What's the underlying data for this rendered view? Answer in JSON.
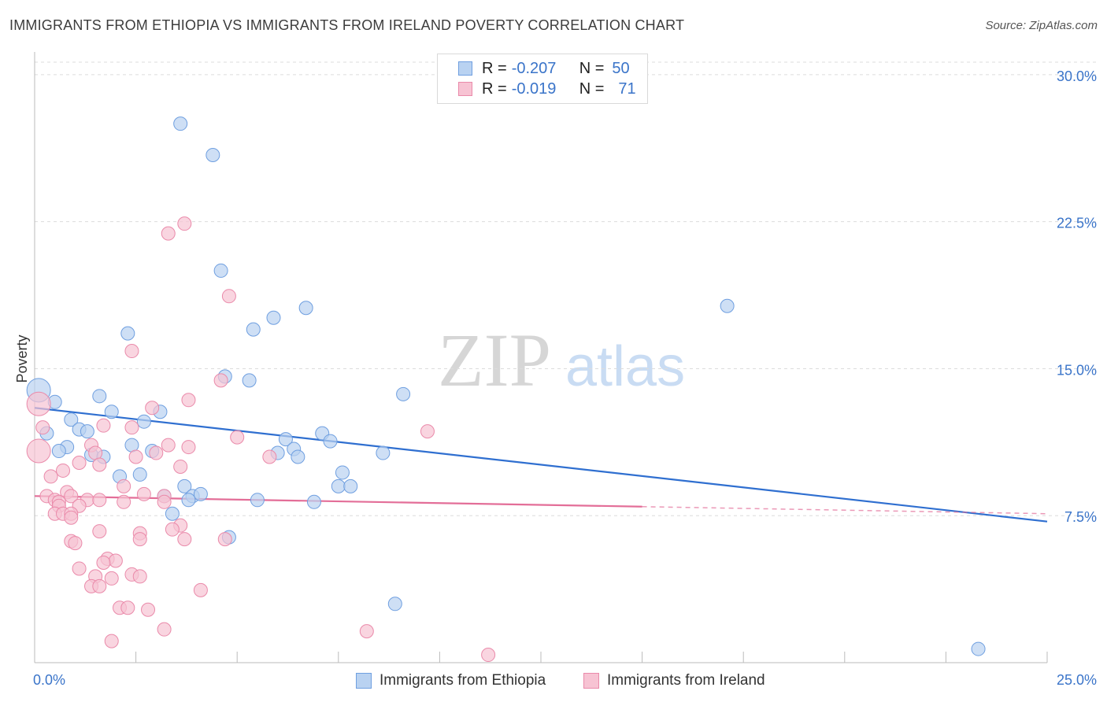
{
  "title": "IMMIGRANTS FROM ETHIOPIA VS IMMIGRANTS FROM IRELAND POVERTY CORRELATION CHART",
  "source": "Source: ZipAtlas.com",
  "watermark": {
    "zip": "ZIP",
    "atlas": "atlas"
  },
  "stats": [
    {
      "r_label": "R =",
      "r_value": "-0.207",
      "n_label": "N =",
      "n_value": "50"
    },
    {
      "r_label": "R =",
      "r_value": "-0.019",
      "n_label": "N =",
      "n_value": "71"
    }
  ],
  "legend": [
    {
      "label": "Immigrants from Ethiopia"
    },
    {
      "label": "Immigrants from Ireland"
    }
  ],
  "colors": {
    "ethiopia_fill": "#b9d2f1",
    "ethiopia_stroke": "#6f9fe0",
    "ethiopia_line": "#2f6fd0",
    "ireland_fill": "#f7c3d3",
    "ireland_stroke": "#ea8aaa",
    "ireland_line": "#e36e98",
    "grid": "#dcdcdc",
    "tick_text": "#3a74c9"
  },
  "chart_data": {
    "type": "scatter",
    "ylabel": "Poverty",
    "xlabel": "",
    "xlim": [
      0,
      25
    ],
    "ylim": [
      0,
      31
    ],
    "x_tick_labels": [
      {
        "value": 0,
        "label": "0.0%"
      },
      {
        "value": 25,
        "label": "25.0%"
      }
    ],
    "y_tick_labels": [
      {
        "value": 7.5,
        "label": "7.5%"
      },
      {
        "value": 15,
        "label": "15.0%"
      },
      {
        "value": 22.5,
        "label": "22.5%"
      },
      {
        "value": 30,
        "label": "30.0%"
      }
    ],
    "grid": true,
    "series": [
      {
        "name": "Immigrants from Ethiopia",
        "trend": {
          "x": [
            0,
            25
          ],
          "y": [
            13.0,
            7.2
          ],
          "dashed_from": null
        },
        "points": [
          [
            3.6,
            27.5
          ],
          [
            4.4,
            25.9
          ],
          [
            4.6,
            20.0
          ],
          [
            6.7,
            18.1
          ],
          [
            17.1,
            18.2
          ],
          [
            5.9,
            17.6
          ],
          [
            5.4,
            17.0
          ],
          [
            2.3,
            16.8
          ],
          [
            4.7,
            14.6
          ],
          [
            5.3,
            14.4
          ],
          [
            0.1,
            13.9
          ],
          [
            1.6,
            13.6
          ],
          [
            9.1,
            13.7
          ],
          [
            0.5,
            13.3
          ],
          [
            1.9,
            12.8
          ],
          [
            3.1,
            12.8
          ],
          [
            0.9,
            12.4
          ],
          [
            2.7,
            12.3
          ],
          [
            1.1,
            11.9
          ],
          [
            1.3,
            11.8
          ],
          [
            0.3,
            11.7
          ],
          [
            7.1,
            11.7
          ],
          [
            6.2,
            11.4
          ],
          [
            7.3,
            11.3
          ],
          [
            0.8,
            11.0
          ],
          [
            2.4,
            11.1
          ],
          [
            0.6,
            10.8
          ],
          [
            2.9,
            10.8
          ],
          [
            6.4,
            10.9
          ],
          [
            6.0,
            10.7
          ],
          [
            8.6,
            10.7
          ],
          [
            1.4,
            10.6
          ],
          [
            1.7,
            10.5
          ],
          [
            6.5,
            10.5
          ],
          [
            7.6,
            9.7
          ],
          [
            2.1,
            9.5
          ],
          [
            2.6,
            9.6
          ],
          [
            3.7,
            9.0
          ],
          [
            7.5,
            9.0
          ],
          [
            7.8,
            9.0
          ],
          [
            3.2,
            8.5
          ],
          [
            3.9,
            8.5
          ],
          [
            4.1,
            8.6
          ],
          [
            5.5,
            8.3
          ],
          [
            6.9,
            8.2
          ],
          [
            3.4,
            7.6
          ],
          [
            4.8,
            6.4
          ],
          [
            8.9,
            3.0
          ],
          [
            23.3,
            0.7
          ],
          [
            3.8,
            8.3
          ]
        ],
        "sizes": [
          1,
          1,
          1,
          1,
          1,
          1,
          1,
          1,
          1,
          1,
          2,
          1,
          1,
          1,
          1,
          1,
          1,
          1,
          1,
          1,
          1,
          1,
          1,
          1,
          1,
          1,
          1,
          1,
          1,
          1,
          1,
          1,
          1,
          1,
          1,
          1,
          1,
          1,
          1,
          1,
          1,
          1,
          1,
          1,
          1,
          1,
          1,
          1,
          1,
          1
        ]
      },
      {
        "name": "Immigrants from Ireland",
        "trend": {
          "x": [
            0,
            25
          ],
          "y": [
            8.5,
            7.6
          ],
          "dashed_from": 15
        },
        "points": [
          [
            3.7,
            22.4
          ],
          [
            3.3,
            21.9
          ],
          [
            4.8,
            18.7
          ],
          [
            2.4,
            15.9
          ],
          [
            4.6,
            14.4
          ],
          [
            3.8,
            13.4
          ],
          [
            0.1,
            13.2
          ],
          [
            2.9,
            13.0
          ],
          [
            0.2,
            12.0
          ],
          [
            1.7,
            12.1
          ],
          [
            2.4,
            12.0
          ],
          [
            5.0,
            11.5
          ],
          [
            9.7,
            11.8
          ],
          [
            0.1,
            10.8
          ],
          [
            1.4,
            11.1
          ],
          [
            3.3,
            11.1
          ],
          [
            3.8,
            11.0
          ],
          [
            1.5,
            10.7
          ],
          [
            3.0,
            10.7
          ],
          [
            5.8,
            10.5
          ],
          [
            1.1,
            10.2
          ],
          [
            1.6,
            10.1
          ],
          [
            3.6,
            10.0
          ],
          [
            0.7,
            9.8
          ],
          [
            0.4,
            9.5
          ],
          [
            2.2,
            9.0
          ],
          [
            0.8,
            8.7
          ],
          [
            2.7,
            8.6
          ],
          [
            0.3,
            8.5
          ],
          [
            0.9,
            8.5
          ],
          [
            3.2,
            8.5
          ],
          [
            0.5,
            8.3
          ],
          [
            1.3,
            8.3
          ],
          [
            0.6,
            8.2
          ],
          [
            2.2,
            8.2
          ],
          [
            3.2,
            8.2
          ],
          [
            0.6,
            8.0
          ],
          [
            1.1,
            8.0
          ],
          [
            0.5,
            7.6
          ],
          [
            0.7,
            7.6
          ],
          [
            0.9,
            7.6
          ],
          [
            3.6,
            7.0
          ],
          [
            3.4,
            6.8
          ],
          [
            1.6,
            6.7
          ],
          [
            2.6,
            6.6
          ],
          [
            2.6,
            6.3
          ],
          [
            3.7,
            6.3
          ],
          [
            4.7,
            6.3
          ],
          [
            0.9,
            6.2
          ],
          [
            1.0,
            6.1
          ],
          [
            1.1,
            4.8
          ],
          [
            1.8,
            5.3
          ],
          [
            2.0,
            5.2
          ],
          [
            1.7,
            5.1
          ],
          [
            2.4,
            4.5
          ],
          [
            1.5,
            4.4
          ],
          [
            1.9,
            4.3
          ],
          [
            2.6,
            4.4
          ],
          [
            1.4,
            3.9
          ],
          [
            1.6,
            3.9
          ],
          [
            4.1,
            3.7
          ],
          [
            2.1,
            2.8
          ],
          [
            2.3,
            2.8
          ],
          [
            2.8,
            2.7
          ],
          [
            3.2,
            1.7
          ],
          [
            8.2,
            1.6
          ],
          [
            1.9,
            1.1
          ],
          [
            11.2,
            0.4
          ],
          [
            0.9,
            7.4
          ],
          [
            1.6,
            8.3
          ],
          [
            2.5,
            10.5
          ]
        ],
        "sizes": [
          1,
          1,
          1,
          1,
          1,
          1,
          2,
          1,
          1,
          1,
          1,
          1,
          1,
          2,
          1,
          1,
          1,
          1,
          1,
          1,
          1,
          1,
          1,
          1,
          1,
          1,
          1,
          1,
          1,
          1,
          1,
          1,
          1,
          1,
          1,
          1,
          1,
          1,
          1,
          1,
          1,
          1,
          1,
          1,
          1,
          1,
          1,
          1,
          1,
          1,
          1,
          1,
          1,
          1,
          1,
          1,
          1,
          1,
          1,
          1,
          1,
          1,
          1,
          1,
          1,
          1,
          1,
          1,
          1,
          1,
          1
        ]
      }
    ]
  }
}
